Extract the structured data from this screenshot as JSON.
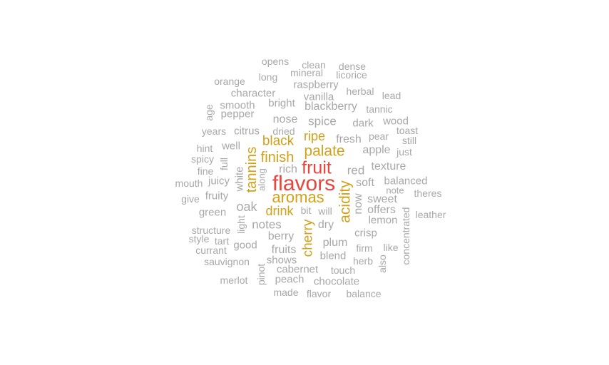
{
  "colors": {
    "top": "#e8463c",
    "major": "#d4a017",
    "minor": "#a8a8a8"
  },
  "words": [
    {
      "text": "flavors",
      "tier": "top"
    },
    {
      "text": "fruit",
      "tier": "top"
    },
    {
      "text": "aromas",
      "tier": "major"
    },
    {
      "text": "palate",
      "tier": "major"
    },
    {
      "text": "finish",
      "tier": "major"
    },
    {
      "text": "black",
      "tier": "major"
    },
    {
      "text": "ripe",
      "tier": "major"
    },
    {
      "text": "drink",
      "tier": "major"
    },
    {
      "text": "tannins",
      "tier": "major",
      "vertical": true
    },
    {
      "text": "acidity",
      "tier": "major",
      "vertical": true
    },
    {
      "text": "cherry",
      "tier": "major",
      "vertical": true
    },
    {
      "text": "opens",
      "tier": "minor"
    },
    {
      "text": "clean",
      "tier": "minor"
    },
    {
      "text": "dense",
      "tier": "minor"
    },
    {
      "text": "mineral",
      "tier": "minor"
    },
    {
      "text": "licorice",
      "tier": "minor"
    },
    {
      "text": "long",
      "tier": "minor"
    },
    {
      "text": "orange",
      "tier": "minor"
    },
    {
      "text": "raspberry",
      "tier": "minor"
    },
    {
      "text": "herbal",
      "tier": "minor"
    },
    {
      "text": "character",
      "tier": "minor"
    },
    {
      "text": "vanilla",
      "tier": "minor"
    },
    {
      "text": "lead",
      "tier": "minor"
    },
    {
      "text": "smooth",
      "tier": "minor"
    },
    {
      "text": "bright",
      "tier": "minor"
    },
    {
      "text": "blackberry",
      "tier": "minor"
    },
    {
      "text": "tannic",
      "tier": "minor"
    },
    {
      "text": "age",
      "tier": "minor",
      "vertical": true
    },
    {
      "text": "pepper",
      "tier": "minor"
    },
    {
      "text": "nose",
      "tier": "minor"
    },
    {
      "text": "spice",
      "tier": "minor"
    },
    {
      "text": "dark",
      "tier": "minor"
    },
    {
      "text": "wood",
      "tier": "minor"
    },
    {
      "text": "years",
      "tier": "minor"
    },
    {
      "text": "citrus",
      "tier": "minor"
    },
    {
      "text": "dried",
      "tier": "minor"
    },
    {
      "text": "pear",
      "tier": "minor"
    },
    {
      "text": "toast",
      "tier": "minor"
    },
    {
      "text": "hint",
      "tier": "minor"
    },
    {
      "text": "well",
      "tier": "minor"
    },
    {
      "text": "fresh",
      "tier": "minor"
    },
    {
      "text": "still",
      "tier": "minor"
    },
    {
      "text": "spicy",
      "tier": "minor"
    },
    {
      "text": "full",
      "tier": "minor",
      "vertical": true
    },
    {
      "text": "apple",
      "tier": "minor"
    },
    {
      "text": "just",
      "tier": "minor"
    },
    {
      "text": "fine",
      "tier": "minor"
    },
    {
      "text": "white",
      "tier": "minor",
      "vertical": true
    },
    {
      "text": "rich",
      "tier": "minor"
    },
    {
      "text": "red",
      "tier": "minor"
    },
    {
      "text": "texture",
      "tier": "minor"
    },
    {
      "text": "mouth",
      "tier": "minor"
    },
    {
      "text": "juicy",
      "tier": "minor"
    },
    {
      "text": "along",
      "tier": "minor",
      "vertical": true
    },
    {
      "text": "soft",
      "tier": "minor"
    },
    {
      "text": "balanced",
      "tier": "minor"
    },
    {
      "text": "give",
      "tier": "minor"
    },
    {
      "text": "fruity",
      "tier": "minor"
    },
    {
      "text": "note",
      "tier": "minor"
    },
    {
      "text": "theres",
      "tier": "minor"
    },
    {
      "text": "now",
      "tier": "minor",
      "vertical": true
    },
    {
      "text": "sweet",
      "tier": "minor"
    },
    {
      "text": "oak",
      "tier": "minor"
    },
    {
      "text": "green",
      "tier": "minor"
    },
    {
      "text": "bit",
      "tier": "minor"
    },
    {
      "text": "will",
      "tier": "minor"
    },
    {
      "text": "offers",
      "tier": "minor"
    },
    {
      "text": "leather",
      "tier": "minor"
    },
    {
      "text": "concentrated",
      "tier": "minor",
      "vertical": true
    },
    {
      "text": "light",
      "tier": "minor",
      "vertical": true
    },
    {
      "text": "lemon",
      "tier": "minor"
    },
    {
      "text": "notes",
      "tier": "minor"
    },
    {
      "text": "dry",
      "tier": "minor"
    },
    {
      "text": "structure",
      "tier": "minor"
    },
    {
      "text": "crisp",
      "tier": "minor"
    },
    {
      "text": "style",
      "tier": "minor"
    },
    {
      "text": "berry",
      "tier": "minor"
    },
    {
      "text": "tart",
      "tier": "minor"
    },
    {
      "text": "plum",
      "tier": "minor"
    },
    {
      "text": "good",
      "tier": "minor"
    },
    {
      "text": "firm",
      "tier": "minor"
    },
    {
      "text": "like",
      "tier": "minor"
    },
    {
      "text": "currant",
      "tier": "minor"
    },
    {
      "text": "fruits",
      "tier": "minor"
    },
    {
      "text": "blend",
      "tier": "minor"
    },
    {
      "text": "herb",
      "tier": "minor"
    },
    {
      "text": "also",
      "tier": "minor",
      "vertical": true
    },
    {
      "text": "sauvignon",
      "tier": "minor"
    },
    {
      "text": "shows",
      "tier": "minor"
    },
    {
      "text": "cabernet",
      "tier": "minor"
    },
    {
      "text": "touch",
      "tier": "minor"
    },
    {
      "text": "pinot",
      "tier": "minor",
      "vertical": true
    },
    {
      "text": "merlot",
      "tier": "minor"
    },
    {
      "text": "peach",
      "tier": "minor"
    },
    {
      "text": "chocolate",
      "tier": "minor"
    },
    {
      "text": "made",
      "tier": "minor"
    },
    {
      "text": "flavor",
      "tier": "minor"
    },
    {
      "text": "balance",
      "tier": "minor"
    }
  ]
}
